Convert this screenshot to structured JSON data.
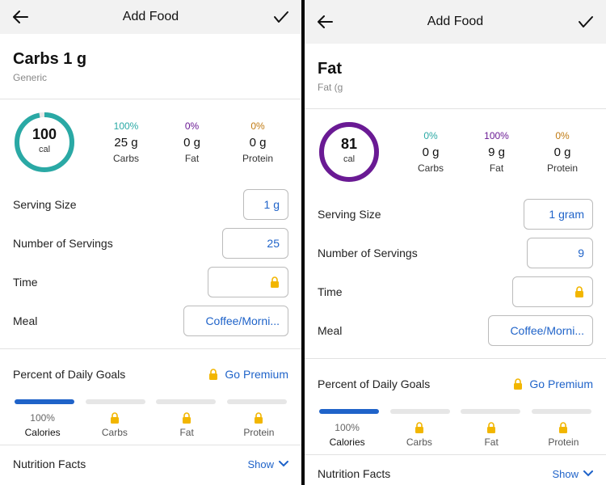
{
  "colors": {
    "carbs": "#2aa9a5",
    "fat": "#6a1a94",
    "protein": "#c07a12",
    "link": "#1f63c9",
    "lock": "#f2b600"
  },
  "screens": [
    {
      "header": {
        "title": "Add Food"
      },
      "food": {
        "name": "Carbs 1 g",
        "subtitle": "Generic"
      },
      "calories": {
        "value": "100",
        "unit": "cal",
        "ring_color": "#2aa9a5",
        "ring_fraction": 0.97
      },
      "macros": [
        {
          "pct": "100%",
          "grams": "25 g",
          "label": "Carbs",
          "color": "#2aa9a5"
        },
        {
          "pct": "0%",
          "grams": "0 g",
          "label": "Fat",
          "color": "#6a1a94"
        },
        {
          "pct": "0%",
          "grams": "0 g",
          "label": "Protein",
          "color": "#c07a12"
        }
      ],
      "serving_size": {
        "label": "Serving Size",
        "value": "1 g"
      },
      "servings": {
        "label": "Number of Servings",
        "value": "25"
      },
      "time": {
        "label": "Time",
        "value": ""
      },
      "meal": {
        "label": "Meal",
        "value": "Coffee/Morni..."
      },
      "goals": {
        "label": "Percent of Daily Goals",
        "premium": "Go Premium",
        "columns": [
          {
            "top": "100%",
            "name": "Calories",
            "fill": 1.0
          },
          {
            "top": "",
            "name": "Carbs",
            "fill": 0
          },
          {
            "top": "",
            "name": "Fat",
            "fill": 0
          },
          {
            "top": "",
            "name": "Protein",
            "fill": 0
          }
        ]
      },
      "nutrition": {
        "label": "Nutrition Facts",
        "show": "Show"
      }
    },
    {
      "header": {
        "title": "Add Food"
      },
      "food": {
        "name": "Fat",
        "subtitle": "Fat (g"
      },
      "calories": {
        "value": "81",
        "unit": "cal",
        "ring_color": "#6a1a94",
        "ring_fraction": 1.0
      },
      "macros": [
        {
          "pct": "0%",
          "grams": "0 g",
          "label": "Carbs",
          "color": "#2aa9a5"
        },
        {
          "pct": "100%",
          "grams": "9 g",
          "label": "Fat",
          "color": "#6a1a94"
        },
        {
          "pct": "0%",
          "grams": "0 g",
          "label": "Protein",
          "color": "#c07a12"
        }
      ],
      "serving_size": {
        "label": "Serving Size",
        "value": "1 gram"
      },
      "servings": {
        "label": "Number of Servings",
        "value": "9"
      },
      "time": {
        "label": "Time",
        "value": ""
      },
      "meal": {
        "label": "Meal",
        "value": "Coffee/Morni..."
      },
      "goals": {
        "label": "Percent of Daily Goals",
        "premium": "Go Premium",
        "columns": [
          {
            "top": "100%",
            "name": "Calories",
            "fill": 1.0
          },
          {
            "top": "",
            "name": "Carbs",
            "fill": 0
          },
          {
            "top": "",
            "name": "Fat",
            "fill": 0
          },
          {
            "top": "",
            "name": "Protein",
            "fill": 0
          }
        ]
      },
      "nutrition": {
        "label": "Nutrition Facts",
        "show": "Show"
      }
    }
  ]
}
